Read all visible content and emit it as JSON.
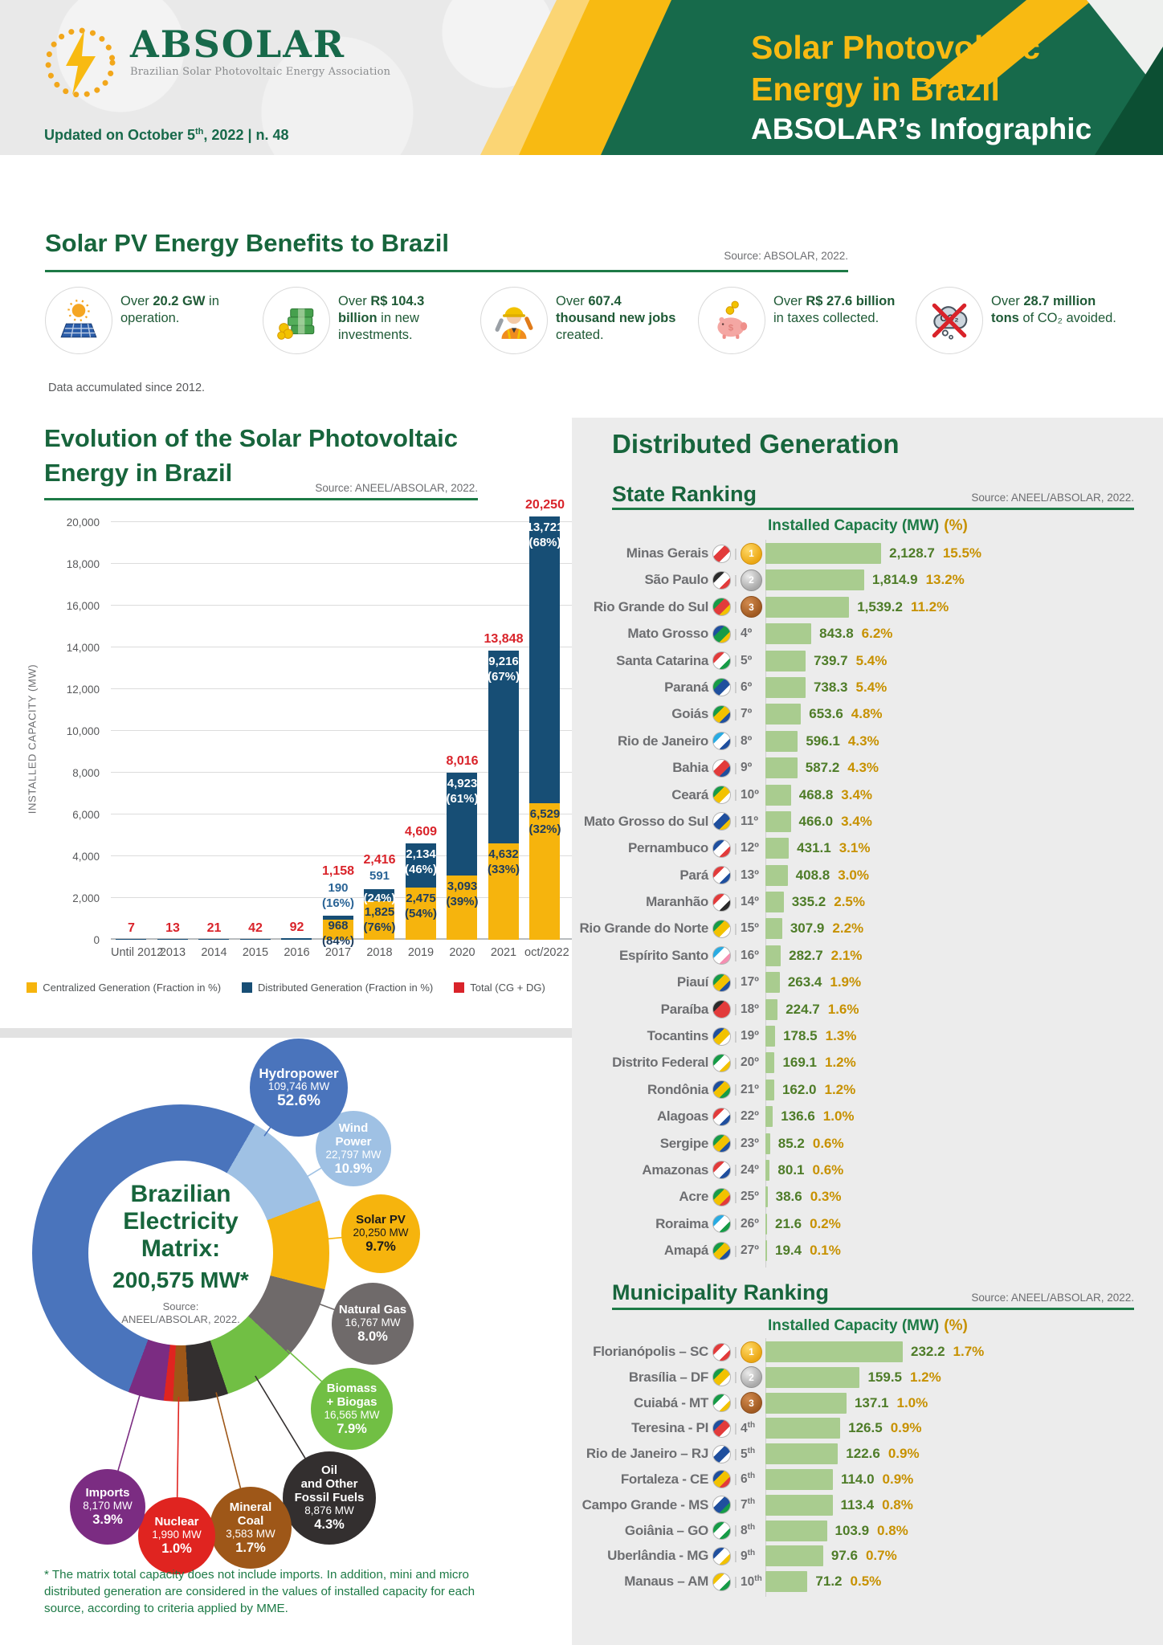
{
  "header": {
    "logo": {
      "name": "ABSOLAR",
      "tagline": "Brazilian Solar Photovoltaic Energy Association"
    },
    "updated": {
      "pre": "Updated on October 5",
      "sup": "th",
      "post": ", 2022 | n. 48"
    },
    "banner": {
      "line1": "Solar Photovoltaic",
      "line2": "Energy in Brazil",
      "line3": "ABSOLAR’s Infographic"
    }
  },
  "benefits": {
    "title": "Solar PV Energy Benefits to Brazil",
    "source": "Source: ABSOLAR, 2022.",
    "note": "Data accumulated since 2012.",
    "items": [
      {
        "icon": "solar-panel-icon",
        "pre": "Over",
        "bold": "20.2 GW",
        "post": "in operation."
      },
      {
        "icon": "money-stack-icon",
        "pre": "Over",
        "bold": "R$ 104.3 billion",
        "post": "in new investments."
      },
      {
        "icon": "worker-icon",
        "pre": "Over",
        "bold": "607.4 thousand new jobs",
        "post": "created."
      },
      {
        "icon": "piggy-bank-icon",
        "pre": "Over",
        "bold": "R$ 27.6 billion",
        "post": "in taxes collected."
      },
      {
        "icon": "co2-cloud-icon",
        "pre": "Over",
        "bold": "28.7 million tons",
        "post": "of CO₂ avoided."
      }
    ]
  },
  "distributed_generation": {
    "title": "Distributed Generation"
  },
  "chart_data": [
    {
      "id": "evolution",
      "type": "bar",
      "stacked": true,
      "title_line1": "Evolution of the Solar Photovoltaic",
      "title_line2": "Energy in Brazil",
      "source": "Source: ANEEL/ABSOLAR, 2022.",
      "ylabel": "INSTALLED CAPACITY (MW)",
      "ylim": [
        0,
        20000
      ],
      "ytick_step": 2000,
      "yticks": [
        "0",
        "2,000",
        "4,000",
        "6,000",
        "8,000",
        "10,000",
        "12,000",
        "14,000",
        "16,000",
        "18,000",
        "20,000"
      ],
      "categories": [
        "Until 2012",
        "2013",
        "2014",
        "2015",
        "2016",
        "2017",
        "2018",
        "2019",
        "2020",
        "2021",
        "oct/2022"
      ],
      "legend": [
        {
          "label": "Centralized Generation (Fraction in %)",
          "color": "#f6b40d"
        },
        {
          "label": "Distributed Generation (Fraction in %)",
          "color": "#174e75"
        },
        {
          "label": "Total (CG + DG)",
          "color": "#d9232a"
        }
      ],
      "bars": [
        {
          "cat": "Until 2012",
          "total": 7,
          "total_label": "7"
        },
        {
          "cat": "2013",
          "total": 13,
          "total_label": "13"
        },
        {
          "cat": "2014",
          "total": 21,
          "total_label": "21"
        },
        {
          "cat": "2015",
          "total": 42,
          "total_label": "42"
        },
        {
          "cat": "2016",
          "total": 92,
          "total_label": "92"
        },
        {
          "cat": "2017",
          "total": 1158,
          "total_label": "1,158",
          "dg": 190,
          "dg_label": "190",
          "dg_pct": "(16%)",
          "cg": 968,
          "cg_label": "968",
          "cg_pct": "(84%)"
        },
        {
          "cat": "2018",
          "total": 2416,
          "total_label": "2,416",
          "dg": 591,
          "dg_label": "591",
          "dg_pct": "(24%)",
          "cg": 1825,
          "cg_label": "1,825",
          "cg_pct": "(76%)"
        },
        {
          "cat": "2019",
          "total": 4609,
          "total_label": "4,609",
          "dg": 2134,
          "dg_label": "2,134",
          "dg_pct": "(46%)",
          "cg": 2475,
          "cg_label": "2,475",
          "cg_pct": "(54%)"
        },
        {
          "cat": "2020",
          "total": 8016,
          "total_label": "8,016",
          "dg": 4923,
          "dg_label": "4,923",
          "dg_pct": "(61%)",
          "cg": 3093,
          "cg_label": "3,093",
          "cg_pct": "(39%)"
        },
        {
          "cat": "2021",
          "total": 13848,
          "total_label": "13,848",
          "dg": 9216,
          "dg_label": "9,216",
          "dg_pct": "(67%)",
          "cg": 4632,
          "cg_label": "4,632",
          "cg_pct": "(33%)"
        },
        {
          "cat": "oct/2022",
          "total": 20250,
          "total_label": "20,250",
          "dg": 13721,
          "dg_label": "13,721",
          "dg_pct": "(68%)",
          "cg": 6529,
          "cg_label": "6,529",
          "cg_pct": "(32%)"
        }
      ]
    },
    {
      "id": "state_ranking",
      "type": "bar",
      "title": "State Ranking",
      "source": "Source: ANEEL/ABSOLAR, 2022.",
      "col_mw": "Installed Capacity (MW)",
      "col_pct": "(%)",
      "sep": "|",
      "max": 2128.7,
      "rows": [
        {
          "name": "Minas Gerais",
          "medal": "gold",
          "rank": "",
          "sup": "",
          "value": 2128.7,
          "value_label": "2,128.7",
          "pct": "15.5%",
          "flag": [
            "#ffffff",
            "#e23b3b",
            "#ffffff"
          ]
        },
        {
          "name": "São Paulo",
          "medal": "silver",
          "rank": "",
          "sup": "",
          "value": 1814.9,
          "value_label": "1,814.9",
          "pct": "13.2%",
          "flag": [
            "#2b2b2b",
            "#ffffff",
            "#e23b3b"
          ]
        },
        {
          "name": "Rio Grande do Sul",
          "medal": "bronze",
          "rank": "",
          "sup": "",
          "value": 1539.2,
          "value_label": "1,539.2",
          "pct": "11.2%",
          "flag": [
            "#169b47",
            "#e23b3b",
            "#f2c200"
          ]
        },
        {
          "name": "Mato Grosso",
          "medal": "",
          "rank": "4º",
          "sup": "",
          "value": 843.8,
          "value_label": "843.8",
          "pct": "6.2%",
          "flag": [
            "#1f4f9e",
            "#169b47",
            "#f2c200"
          ]
        },
        {
          "name": "Santa Catarina",
          "medal": "",
          "rank": "5º",
          "sup": "",
          "value": 739.7,
          "value_label": "739.7",
          "pct": "5.4%",
          "flag": [
            "#e23b3b",
            "#ffffff",
            "#169b47"
          ]
        },
        {
          "name": "Paraná",
          "medal": "",
          "rank": "6º",
          "sup": "",
          "value": 738.3,
          "value_label": "738.3",
          "pct": "5.4%",
          "flag": [
            "#169b47",
            "#1f4f9e",
            "#ffffff"
          ]
        },
        {
          "name": "Goiás",
          "medal": "",
          "rank": "7º",
          "sup": "",
          "value": 653.6,
          "value_label": "653.6",
          "pct": "4.8%",
          "flag": [
            "#169b47",
            "#f2c200",
            "#1f4f9e"
          ]
        },
        {
          "name": "Rio de Janeiro",
          "medal": "",
          "rank": "8º",
          "sup": "",
          "value": 596.1,
          "value_label": "596.1",
          "pct": "4.3%",
          "flag": [
            "#29abe2",
            "#ffffff",
            "#1f4f9e"
          ]
        },
        {
          "name": "Bahia",
          "medal": "",
          "rank": "9º",
          "sup": "",
          "value": 587.2,
          "value_label": "587.2",
          "pct": "4.3%",
          "flag": [
            "#ffffff",
            "#e23b3b",
            "#1f4f9e"
          ]
        },
        {
          "name": "Ceará",
          "medal": "",
          "rank": "10º",
          "sup": "",
          "value": 468.8,
          "value_label": "468.8",
          "pct": "3.4%",
          "flag": [
            "#169b47",
            "#f2c200",
            "#ffffff"
          ]
        },
        {
          "name": "Mato Grosso do Sul",
          "medal": "",
          "rank": "11º",
          "sup": "",
          "value": 466.0,
          "value_label": "466.0",
          "pct": "3.4%",
          "flag": [
            "#ffffff",
            "#1f4f9e",
            "#f2c200"
          ]
        },
        {
          "name": "Pernambuco",
          "medal": "",
          "rank": "12º",
          "sup": "",
          "value": 431.1,
          "value_label": "431.1",
          "pct": "3.1%",
          "flag": [
            "#1f4f9e",
            "#ffffff",
            "#e23b3b"
          ]
        },
        {
          "name": "Pará",
          "medal": "",
          "rank": "13º",
          "sup": "",
          "value": 408.8,
          "value_label": "408.8",
          "pct": "3.0%",
          "flag": [
            "#e23b3b",
            "#ffffff",
            "#1f4f9e"
          ]
        },
        {
          "name": "Maranhão",
          "medal": "",
          "rank": "14º",
          "sup": "",
          "value": 335.2,
          "value_label": "335.2",
          "pct": "2.5%",
          "flag": [
            "#e23b3b",
            "#ffffff",
            "#2b2b2b"
          ]
        },
        {
          "name": "Rio Grande do Norte",
          "medal": "",
          "rank": "15º",
          "sup": "",
          "value": 307.9,
          "value_label": "307.9",
          "pct": "2.2%",
          "flag": [
            "#169b47",
            "#f2c200",
            "#ffffff"
          ]
        },
        {
          "name": "Espírito Santo",
          "medal": "",
          "rank": "16º",
          "sup": "",
          "value": 282.7,
          "value_label": "282.7",
          "pct": "2.1%",
          "flag": [
            "#29abe2",
            "#ffffff",
            "#f48fb1"
          ]
        },
        {
          "name": "Piauí",
          "medal": "",
          "rank": "17º",
          "sup": "",
          "value": 263.4,
          "value_label": "263.4",
          "pct": "1.9%",
          "flag": [
            "#169b47",
            "#f2c200",
            "#1f4f9e"
          ]
        },
        {
          "name": "Paraíba",
          "medal": "",
          "rank": "18º",
          "sup": "",
          "value": 224.7,
          "value_label": "224.7",
          "pct": "1.6%",
          "flag": [
            "#2b2b2b",
            "#e23b3b",
            "#e23b3b"
          ]
        },
        {
          "name": "Tocantins",
          "medal": "",
          "rank": "19º",
          "sup": "",
          "value": 178.5,
          "value_label": "178.5",
          "pct": "1.3%",
          "flag": [
            "#1f4f9e",
            "#f2c200",
            "#ffffff"
          ]
        },
        {
          "name": "Distrito Federal",
          "medal": "",
          "rank": "20º",
          "sup": "",
          "value": 169.1,
          "value_label": "169.1",
          "pct": "1.2%",
          "flag": [
            "#169b47",
            "#ffffff",
            "#f2c200"
          ]
        },
        {
          "name": "Rondônia",
          "medal": "",
          "rank": "21º",
          "sup": "",
          "value": 162.0,
          "value_label": "162.0",
          "pct": "1.2%",
          "flag": [
            "#1f4f9e",
            "#f2c200",
            "#169b47"
          ]
        },
        {
          "name": "Alagoas",
          "medal": "",
          "rank": "22º",
          "sup": "",
          "value": 136.6,
          "value_label": "136.6",
          "pct": "1.0%",
          "flag": [
            "#e23b3b",
            "#ffffff",
            "#1f4f9e"
          ]
        },
        {
          "name": "Sergipe",
          "medal": "",
          "rank": "23º",
          "sup": "",
          "value": 85.2,
          "value_label": "85.2",
          "pct": "0.6%",
          "flag": [
            "#169b47",
            "#f2c200",
            "#1f4f9e"
          ]
        },
        {
          "name": "Amazonas",
          "medal": "",
          "rank": "24º",
          "sup": "",
          "value": 80.1,
          "value_label": "80.1",
          "pct": "0.6%",
          "flag": [
            "#e23b3b",
            "#ffffff",
            "#1f4f9e"
          ]
        },
        {
          "name": "Acre",
          "medal": "",
          "rank": "25º",
          "sup": "",
          "value": 38.6,
          "value_label": "38.6",
          "pct": "0.3%",
          "flag": [
            "#169b47",
            "#f2c200",
            "#e23b3b"
          ]
        },
        {
          "name": "Roraima",
          "medal": "",
          "rank": "26º",
          "sup": "",
          "value": 21.6,
          "value_label": "21.6",
          "pct": "0.2%",
          "flag": [
            "#29abe2",
            "#ffffff",
            "#169b47"
          ]
        },
        {
          "name": "Amapá",
          "medal": "",
          "rank": "27º",
          "sup": "",
          "value": 19.4,
          "value_label": "19.4",
          "pct": "0.1%",
          "flag": [
            "#169b47",
            "#f2c200",
            "#1f4f9e"
          ]
        }
      ]
    },
    {
      "id": "municipality_ranking",
      "type": "bar",
      "title": "Municipality Ranking",
      "source": "Source: ANEEL/ABSOLAR, 2022.",
      "col_mw": "Installed Capacity (MW)",
      "col_pct": "(%)",
      "sep": "|",
      "max": 232.2,
      "rows": [
        {
          "name": "Florianópolis – SC",
          "medal": "gold",
          "rank": "",
          "sup": "",
          "value": 232.2,
          "value_label": "232.2",
          "pct": "1.7%",
          "flag": [
            "#e23b3b",
            "#ffffff",
            "#e23b3b"
          ]
        },
        {
          "name": "Brasília – DF",
          "medal": "silver",
          "rank": "",
          "sup": "",
          "value": 159.5,
          "value_label": "159.5",
          "pct": "1.2%",
          "flag": [
            "#169b47",
            "#f2c200",
            "#ffffff"
          ]
        },
        {
          "name": "Cuiabá - MT",
          "medal": "bronze",
          "rank": "",
          "sup": "",
          "value": 137.1,
          "value_label": "137.1",
          "pct": "1.0%",
          "flag": [
            "#169b47",
            "#ffffff",
            "#f2c200"
          ]
        },
        {
          "name": "Teresina - PI",
          "medal": "",
          "rank": "4",
          "sup": "th",
          "value": 126.5,
          "value_label": "126.5",
          "pct": "0.9%",
          "flag": [
            "#1f4f9e",
            "#e23b3b",
            "#ffffff"
          ]
        },
        {
          "name": "Rio de Janeiro – RJ",
          "medal": "",
          "rank": "5",
          "sup": "th",
          "value": 122.6,
          "value_label": "122.6",
          "pct": "0.9%",
          "flag": [
            "#ffffff",
            "#1f4f9e",
            "#ffffff"
          ]
        },
        {
          "name": "Fortaleza - CE",
          "medal": "",
          "rank": "6",
          "sup": "th",
          "value": 114.0,
          "value_label": "114.0",
          "pct": "0.9%",
          "flag": [
            "#1f4f9e",
            "#f2c200",
            "#e23b3b"
          ]
        },
        {
          "name": "Campo Grande - MS",
          "medal": "",
          "rank": "7",
          "sup": "th",
          "value": 113.4,
          "value_label": "113.4",
          "pct": "0.8%",
          "flag": [
            "#ffffff",
            "#1f4f9e",
            "#169b47"
          ]
        },
        {
          "name": "Goiânia – GO",
          "medal": "",
          "rank": "8",
          "sup": "th",
          "value": 103.9,
          "value_label": "103.9",
          "pct": "0.8%",
          "flag": [
            "#169b47",
            "#ffffff",
            "#169b47"
          ]
        },
        {
          "name": "Uberlândia - MG",
          "medal": "",
          "rank": "9",
          "sup": "th",
          "value": 97.6,
          "value_label": "97.6",
          "pct": "0.7%",
          "flag": [
            "#1f4f9e",
            "#ffffff",
            "#f2c200"
          ]
        },
        {
          "name": "Manaus – AM",
          "medal": "",
          "rank": "10",
          "sup": "th",
          "value": 71.2,
          "value_label": "71.2",
          "pct": "0.5%",
          "flag": [
            "#f2c200",
            "#ffffff",
            "#169b47"
          ]
        }
      ]
    },
    {
      "id": "matrix",
      "type": "pie",
      "donut": true,
      "start_angle_deg": 30,
      "center": {
        "l1": "Brazilian",
        "l2": "Electricity",
        "l3": "Matrix:",
        "total": "200,575 MW*",
        "src1": "Source:",
        "src2": "ANEEL/ABSOLAR, 2022."
      },
      "segments": [
        {
          "name": "Wind Power",
          "name_lines": [
            "Wind",
            "Power"
          ],
          "mw": "22,797 MW",
          "pct": 10.9,
          "pct_label": "10.9%",
          "color": "#9fc1e4",
          "text": "#ffffff"
        },
        {
          "name": "Solar PV",
          "name_lines": [
            "Solar PV"
          ],
          "mw": "20,250 MW",
          "pct": 9.7,
          "pct_label": "9.7%",
          "color": "#f6b40d",
          "text": "#1a1a1a"
        },
        {
          "name": "Natural Gas",
          "name_lines": [
            "Natural Gas"
          ],
          "mw": "16,767 MW",
          "pct": 8.0,
          "pct_label": "8.0%",
          "color": "#6f6a6a",
          "text": "#ffffff"
        },
        {
          "name": "Biomass + Biogas",
          "name_lines": [
            "Biomass",
            "+ Biogas"
          ],
          "mw": "16,565 MW",
          "pct": 7.9,
          "pct_label": "7.9%",
          "color": "#71bf44",
          "text": "#ffffff"
        },
        {
          "name": "Oil and Other Fossil Fuels",
          "name_lines": [
            "Oil",
            "and Other",
            "Fossil Fuels"
          ],
          "mw": "8,876 MW",
          "pct": 4.3,
          "pct_label": "4.3%",
          "color": "#332f2f",
          "text": "#ffffff"
        },
        {
          "name": "Mineral Coal",
          "name_lines": [
            "Mineral",
            "Coal"
          ],
          "mw": "3,583 MW",
          "pct": 1.7,
          "pct_label": "1.7%",
          "color": "#9e5718",
          "text": "#ffffff"
        },
        {
          "name": "Nuclear",
          "name_lines": [
            "Nuclear"
          ],
          "mw": "1,990 MW",
          "pct": 1.0,
          "pct_label": "1.0%",
          "color": "#e02420",
          "text": "#ffffff"
        },
        {
          "name": "Imports",
          "name_lines": [
            "Imports"
          ],
          "mw": "8,170 MW",
          "pct": 3.9,
          "pct_label": "3.9%",
          "color": "#7b2c82",
          "text": "#ffffff"
        },
        {
          "name": "Hydropower",
          "name_lines": [
            "Hydropower"
          ],
          "mw": "109,746 MW",
          "pct": 52.6,
          "pct_label": "52.6%",
          "color": "#4a74bc",
          "text": "#ffffff"
        }
      ],
      "footnote": "* The matrix total capacity does not include imports. In addition, mini and micro distributed generation are considered in the values of installed capacity for each source, according to criteria applied by MME."
    }
  ]
}
